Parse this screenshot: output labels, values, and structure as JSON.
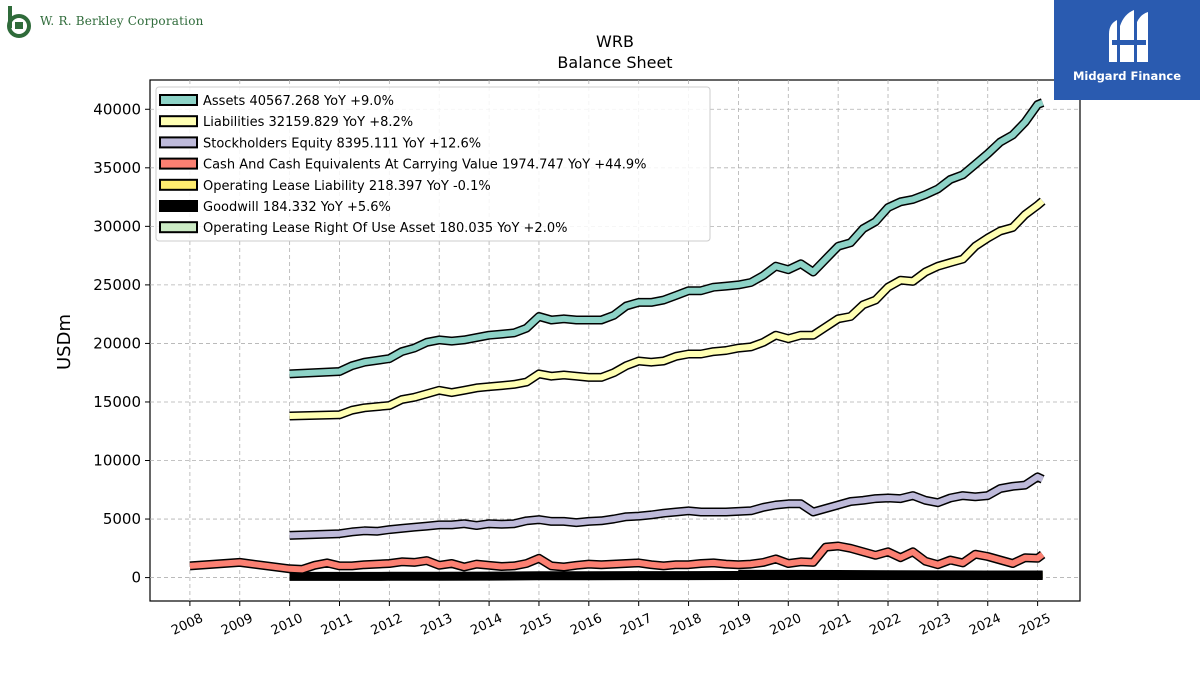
{
  "branding": {
    "company_wordmark": "W. R. Berkley Corporation",
    "company_initial": "b",
    "publisher": "Midgard Finance"
  },
  "chart_data": {
    "type": "line",
    "title": "WRB",
    "subtitle": "Balance  Sheet",
    "xlabel": "",
    "ylabel": "USDm",
    "xlim": [
      2007.2,
      2025.85
    ],
    "ylim": [
      -2000,
      42500
    ],
    "yticks": [
      0,
      5000,
      10000,
      15000,
      20000,
      25000,
      30000,
      35000,
      40000
    ],
    "xticks": [
      2008,
      2009,
      2010,
      2011,
      2012,
      2013,
      2014,
      2015,
      2016,
      2017,
      2018,
      2019,
      2020,
      2021,
      2022,
      2023,
      2024,
      2025
    ],
    "grid": true,
    "legend_position": "top-left",
    "series": [
      {
        "name": "Assets",
        "legend": "Assets  40567.268 YoY +9.0%",
        "color": "#8dd3c7",
        "points": [
          [
            2010.0,
            17400
          ],
          [
            2011.0,
            17600
          ],
          [
            2011.25,
            18100
          ],
          [
            2011.5,
            18400
          ],
          [
            2012.0,
            18700
          ],
          [
            2012.25,
            19300
          ],
          [
            2012.5,
            19600
          ],
          [
            2012.75,
            20100
          ],
          [
            2013.0,
            20300
          ],
          [
            2013.25,
            20200
          ],
          [
            2013.5,
            20300
          ],
          [
            2013.75,
            20500
          ],
          [
            2014.0,
            20700
          ],
          [
            2014.25,
            20800
          ],
          [
            2014.5,
            20900
          ],
          [
            2014.75,
            21300
          ],
          [
            2015.0,
            22300
          ],
          [
            2015.25,
            22000
          ],
          [
            2015.5,
            22100
          ],
          [
            2015.75,
            22000
          ],
          [
            2016.0,
            22000
          ],
          [
            2016.25,
            22000
          ],
          [
            2016.5,
            22400
          ],
          [
            2016.75,
            23200
          ],
          [
            2017.0,
            23500
          ],
          [
            2017.25,
            23500
          ],
          [
            2017.5,
            23700
          ],
          [
            2017.75,
            24100
          ],
          [
            2018.0,
            24500
          ],
          [
            2018.25,
            24500
          ],
          [
            2018.5,
            24800
          ],
          [
            2018.75,
            24900
          ],
          [
            2019.0,
            25000
          ],
          [
            2019.25,
            25200
          ],
          [
            2019.5,
            25800
          ],
          [
            2019.75,
            26600
          ],
          [
            2020.0,
            26300
          ],
          [
            2020.25,
            26800
          ],
          [
            2020.5,
            26100
          ],
          [
            2020.75,
            27200
          ],
          [
            2021.0,
            28300
          ],
          [
            2021.25,
            28600
          ],
          [
            2021.5,
            29800
          ],
          [
            2021.75,
            30400
          ],
          [
            2022.0,
            31600
          ],
          [
            2022.25,
            32100
          ],
          [
            2022.5,
            32300
          ],
          [
            2022.75,
            32700
          ],
          [
            2023.0,
            33200
          ],
          [
            2023.25,
            34000
          ],
          [
            2023.5,
            34400
          ],
          [
            2023.75,
            35300
          ],
          [
            2024.0,
            36200
          ],
          [
            2024.25,
            37200
          ],
          [
            2024.5,
            37800
          ],
          [
            2024.75,
            38900
          ],
          [
            2025.0,
            40400
          ],
          [
            2025.1,
            40567
          ]
        ]
      },
      {
        "name": "Liabilities",
        "legend": "Liabilities  32159.829 YoY +8.2%",
        "color": "#ffffb3",
        "points": [
          [
            2010.0,
            13800
          ],
          [
            2011.0,
            13900
          ],
          [
            2011.25,
            14300
          ],
          [
            2011.5,
            14500
          ],
          [
            2012.0,
            14700
          ],
          [
            2012.25,
            15200
          ],
          [
            2012.5,
            15400
          ],
          [
            2012.75,
            15700
          ],
          [
            2013.0,
            16000
          ],
          [
            2013.25,
            15800
          ],
          [
            2013.5,
            16000
          ],
          [
            2013.75,
            16200
          ],
          [
            2014.0,
            16300
          ],
          [
            2014.25,
            16400
          ],
          [
            2014.5,
            16500
          ],
          [
            2014.75,
            16700
          ],
          [
            2015.0,
            17400
          ],
          [
            2015.25,
            17200
          ],
          [
            2015.5,
            17300
          ],
          [
            2015.75,
            17200
          ],
          [
            2016.0,
            17100
          ],
          [
            2016.25,
            17100
          ],
          [
            2016.5,
            17500
          ],
          [
            2016.75,
            18100
          ],
          [
            2017.0,
            18500
          ],
          [
            2017.25,
            18400
          ],
          [
            2017.5,
            18500
          ],
          [
            2017.75,
            18900
          ],
          [
            2018.0,
            19100
          ],
          [
            2018.25,
            19100
          ],
          [
            2018.5,
            19300
          ],
          [
            2018.75,
            19400
          ],
          [
            2019.0,
            19600
          ],
          [
            2019.25,
            19700
          ],
          [
            2019.5,
            20100
          ],
          [
            2019.75,
            20700
          ],
          [
            2020.0,
            20400
          ],
          [
            2020.25,
            20700
          ],
          [
            2020.5,
            20700
          ],
          [
            2020.75,
            21400
          ],
          [
            2021.0,
            22100
          ],
          [
            2021.25,
            22300
          ],
          [
            2021.5,
            23300
          ],
          [
            2021.75,
            23700
          ],
          [
            2022.0,
            24800
          ],
          [
            2022.25,
            25400
          ],
          [
            2022.5,
            25300
          ],
          [
            2022.75,
            26100
          ],
          [
            2023.0,
            26600
          ],
          [
            2023.25,
            26900
          ],
          [
            2023.5,
            27200
          ],
          [
            2023.75,
            28300
          ],
          [
            2024.0,
            29000
          ],
          [
            2024.25,
            29600
          ],
          [
            2024.5,
            29900
          ],
          [
            2024.75,
            31000
          ],
          [
            2025.0,
            31800
          ],
          [
            2025.1,
            32160
          ]
        ]
      },
      {
        "name": "Stockholders Equity",
        "legend": "Stockholders Equity  8395.111 YoY +12.6%",
        "color": "#bebada",
        "points": [
          [
            2010.0,
            3600
          ],
          [
            2011.0,
            3750
          ],
          [
            2011.25,
            3900
          ],
          [
            2011.5,
            4000
          ],
          [
            2011.75,
            3950
          ],
          [
            2012.0,
            4100
          ],
          [
            2012.25,
            4200
          ],
          [
            2012.5,
            4300
          ],
          [
            2012.75,
            4400
          ],
          [
            2013.0,
            4500
          ],
          [
            2013.25,
            4500
          ],
          [
            2013.5,
            4600
          ],
          [
            2013.75,
            4450
          ],
          [
            2014.0,
            4600
          ],
          [
            2014.25,
            4550
          ],
          [
            2014.5,
            4600
          ],
          [
            2014.75,
            4850
          ],
          [
            2015.0,
            4950
          ],
          [
            2015.25,
            4800
          ],
          [
            2015.5,
            4800
          ],
          [
            2015.75,
            4700
          ],
          [
            2016.0,
            4800
          ],
          [
            2016.25,
            4850
          ],
          [
            2016.5,
            5000
          ],
          [
            2016.75,
            5200
          ],
          [
            2017.0,
            5250
          ],
          [
            2017.25,
            5350
          ],
          [
            2017.5,
            5500
          ],
          [
            2017.75,
            5600
          ],
          [
            2018.0,
            5700
          ],
          [
            2018.25,
            5600
          ],
          [
            2018.5,
            5600
          ],
          [
            2018.75,
            5600
          ],
          [
            2019.0,
            5650
          ],
          [
            2019.25,
            5700
          ],
          [
            2019.5,
            6000
          ],
          [
            2019.75,
            6200
          ],
          [
            2020.0,
            6300
          ],
          [
            2020.25,
            6300
          ],
          [
            2020.5,
            5600
          ],
          [
            2020.75,
            5900
          ],
          [
            2021.0,
            6200
          ],
          [
            2021.25,
            6500
          ],
          [
            2021.5,
            6600
          ],
          [
            2021.75,
            6750
          ],
          [
            2022.0,
            6800
          ],
          [
            2022.25,
            6750
          ],
          [
            2022.5,
            7000
          ],
          [
            2022.75,
            6600
          ],
          [
            2023.0,
            6400
          ],
          [
            2023.25,
            6800
          ],
          [
            2023.5,
            7000
          ],
          [
            2023.75,
            6900
          ],
          [
            2024.0,
            7000
          ],
          [
            2024.25,
            7600
          ],
          [
            2024.5,
            7800
          ],
          [
            2024.75,
            7900
          ],
          [
            2025.0,
            8600
          ],
          [
            2025.1,
            8395
          ]
        ]
      },
      {
        "name": "Cash And Cash Equivalents At Carrying Value",
        "legend": "Cash And Cash Equivalents At Carrying Value  1974.747 YoY +44.9%",
        "color": "#fb8072",
        "points": [
          [
            2008.0,
            1000
          ],
          [
            2009.0,
            1300
          ],
          [
            2010.0,
            750
          ],
          [
            2010.25,
            700
          ],
          [
            2010.5,
            1050
          ],
          [
            2010.75,
            1250
          ],
          [
            2011.0,
            1000
          ],
          [
            2011.25,
            1000
          ],
          [
            2011.5,
            1100
          ],
          [
            2012.0,
            1200
          ],
          [
            2012.25,
            1350
          ],
          [
            2012.5,
            1300
          ],
          [
            2012.75,
            1450
          ],
          [
            2013.0,
            1050
          ],
          [
            2013.25,
            1200
          ],
          [
            2013.5,
            900
          ],
          [
            2013.75,
            1150
          ],
          [
            2014.0,
            1050
          ],
          [
            2014.25,
            950
          ],
          [
            2014.5,
            1000
          ],
          [
            2014.75,
            1200
          ],
          [
            2015.0,
            1650
          ],
          [
            2015.25,
            1000
          ],
          [
            2015.5,
            900
          ],
          [
            2015.75,
            1050
          ],
          [
            2016.0,
            1150
          ],
          [
            2016.25,
            1100
          ],
          [
            2016.5,
            1150
          ],
          [
            2016.75,
            1200
          ],
          [
            2017.0,
            1250
          ],
          [
            2017.25,
            1100
          ],
          [
            2017.5,
            1000
          ],
          [
            2017.75,
            1100
          ],
          [
            2018.0,
            1100
          ],
          [
            2018.25,
            1200
          ],
          [
            2018.5,
            1250
          ],
          [
            2018.75,
            1150
          ],
          [
            2019.0,
            1100
          ],
          [
            2019.25,
            1150
          ],
          [
            2019.5,
            1300
          ],
          [
            2019.75,
            1600
          ],
          [
            2020.0,
            1200
          ],
          [
            2020.25,
            1350
          ],
          [
            2020.5,
            1300
          ],
          [
            2020.75,
            2600
          ],
          [
            2021.0,
            2700
          ],
          [
            2021.25,
            2500
          ],
          [
            2021.5,
            2200
          ],
          [
            2021.75,
            1900
          ],
          [
            2022.0,
            2200
          ],
          [
            2022.25,
            1700
          ],
          [
            2022.5,
            2200
          ],
          [
            2022.75,
            1400
          ],
          [
            2023.0,
            1100
          ],
          [
            2023.25,
            1500
          ],
          [
            2023.5,
            1250
          ],
          [
            2023.75,
            2000
          ],
          [
            2024.0,
            1800
          ],
          [
            2024.25,
            1500
          ],
          [
            2024.5,
            1200
          ],
          [
            2024.75,
            1700
          ],
          [
            2025.0,
            1650
          ],
          [
            2025.1,
            1975
          ]
        ]
      },
      {
        "name": "Operating Lease Liability",
        "legend": "Operating Lease Liability  218.397 YoY -0.1%",
        "color": "#ffed6f",
        "points": [
          [
            2019.0,
            280
          ],
          [
            2020.0,
            275
          ],
          [
            2021.0,
            260
          ],
          [
            2022.0,
            250
          ],
          [
            2023.0,
            230
          ],
          [
            2024.0,
            220
          ],
          [
            2025.1,
            218
          ]
        ]
      },
      {
        "name": "Goodwill",
        "legend": "Goodwill  184.332 YoY +5.6%",
        "color": "#000000",
        "points": [
          [
            2010.0,
            100
          ],
          [
            2011.0,
            100
          ],
          [
            2012.0,
            110
          ],
          [
            2013.0,
            120
          ],
          [
            2014.0,
            130
          ],
          [
            2015.0,
            150
          ],
          [
            2016.0,
            160
          ],
          [
            2017.0,
            170
          ],
          [
            2018.0,
            170
          ],
          [
            2019.0,
            180
          ],
          [
            2020.0,
            175
          ],
          [
            2021.0,
            175
          ],
          [
            2022.0,
            175
          ],
          [
            2023.0,
            175
          ],
          [
            2024.0,
            175
          ],
          [
            2025.1,
            184
          ]
        ]
      },
      {
        "name": "Operating Lease Right Of Use Asset",
        "legend": "Operating Lease Right Of Use Asset  180.035 YoY +2.0%",
        "color": "#ccebc5",
        "points": [
          [
            2019.0,
            250
          ],
          [
            2020.0,
            245
          ],
          [
            2021.0,
            220
          ],
          [
            2022.0,
            200
          ],
          [
            2023.0,
            190
          ],
          [
            2024.0,
            180
          ],
          [
            2025.1,
            180
          ]
        ]
      }
    ]
  }
}
